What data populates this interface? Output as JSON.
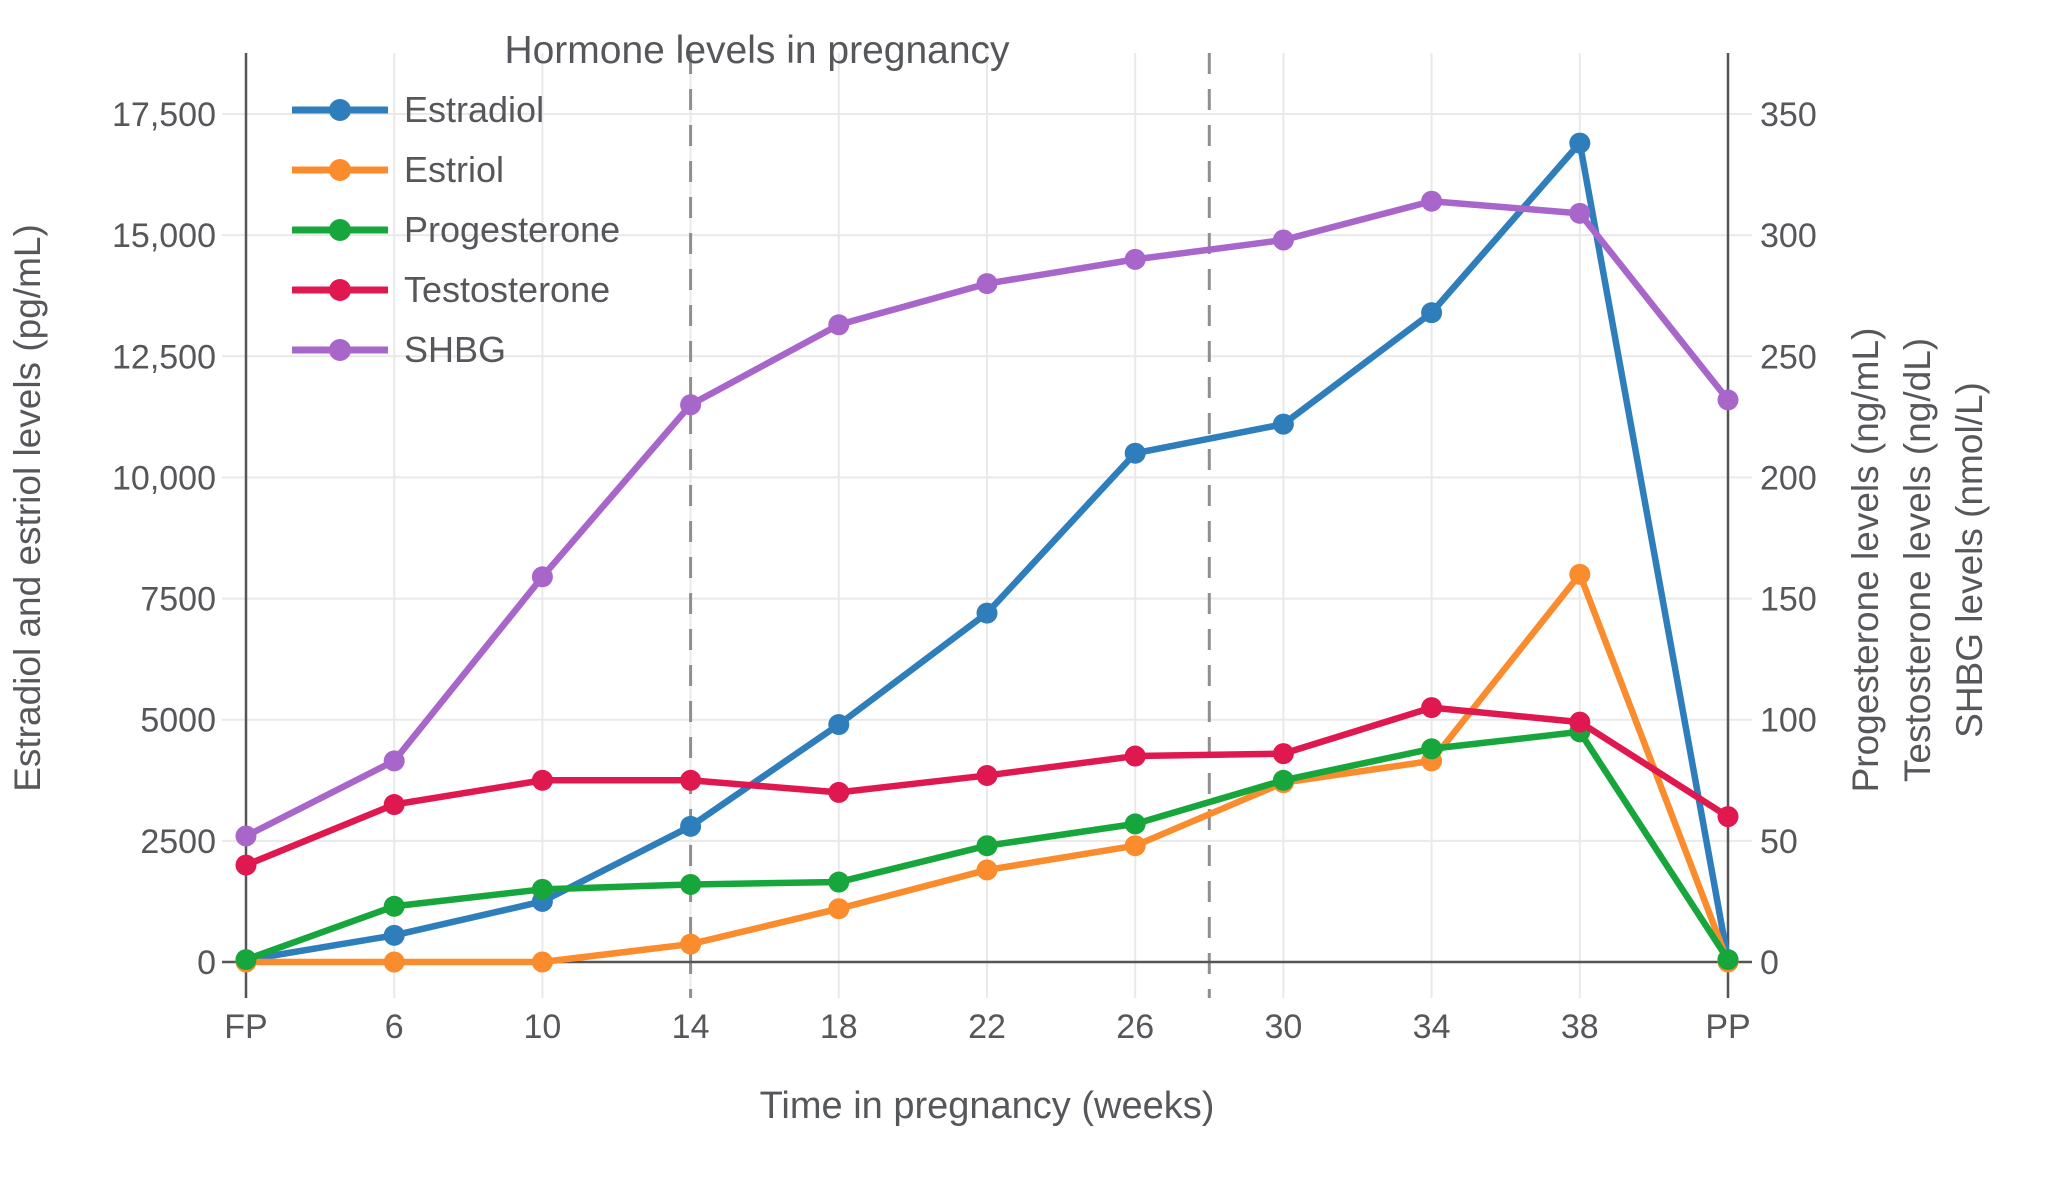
{
  "title": "Hormone levels in pregnancy",
  "colors": {
    "text": "#56575a",
    "grid": "#e9e9ea",
    "axis": "#545557",
    "dashed": "#8f8f8f",
    "background": "#ffffff"
  },
  "chart_data": {
    "type": "line",
    "title": "Hormone levels in pregnancy",
    "xlabel": "Time in pregnancy (weeks)",
    "x_categories": [
      "FP",
      "6",
      "10",
      "14",
      "18",
      "22",
      "26",
      "30",
      "34",
      "38",
      "PP"
    ],
    "dashed_vertical_lines_at_category_positions": [
      3,
      6.5
    ],
    "dashed_lines_meaning_weeks": [
      "14",
      "28"
    ],
    "grid": true,
    "legend_position": "top-left-inside",
    "left_axis": {
      "label": "Estradiol and estriol levels (pg/mL)",
      "range": [
        0,
        18750
      ],
      "ticks": [
        {
          "v": 0,
          "label": "0"
        },
        {
          "v": 2500,
          "label": "2500"
        },
        {
          "v": 5000,
          "label": "5000"
        },
        {
          "v": 7500,
          "label": "7500"
        },
        {
          "v": 10000,
          "label": "10,000"
        },
        {
          "v": 12500,
          "label": "12,500"
        },
        {
          "v": 15000,
          "label": "15,000"
        },
        {
          "v": 17500,
          "label": "17,500"
        }
      ]
    },
    "right_axis": {
      "labels": [
        "Progesterone levels (ng/mL)",
        "Testosterone levels (ng/dL)",
        "SHBG levels (nmol/L)"
      ],
      "range": [
        0,
        375
      ],
      "ticks": [
        {
          "v": 0,
          "label": "0"
        },
        {
          "v": 50,
          "label": "50"
        },
        {
          "v": 100,
          "label": "100"
        },
        {
          "v": 150,
          "label": "150"
        },
        {
          "v": 200,
          "label": "200"
        },
        {
          "v": 250,
          "label": "250"
        },
        {
          "v": 300,
          "label": "300"
        },
        {
          "v": 350,
          "label": "350"
        }
      ]
    },
    "series": [
      {
        "name": "Estradiol",
        "axis": "left",
        "color": "#2e7ebc",
        "values": [
          40,
          550,
          1250,
          2800,
          4900,
          7200,
          10500,
          11100,
          13400,
          16900,
          40
        ]
      },
      {
        "name": "Estriol",
        "axis": "left",
        "color": "#fa8c2e",
        "values": [
          0,
          0,
          0,
          370,
          1100,
          1900,
          2400,
          3700,
          4150,
          8000,
          0
        ]
      },
      {
        "name": "Progesterone",
        "axis": "right",
        "color": "#17a63c",
        "values": [
          1,
          23,
          30,
          32,
          33,
          48,
          57,
          75,
          88,
          95,
          1
        ]
      },
      {
        "name": "Testosterone",
        "axis": "right",
        "color": "#df1950",
        "values": [
          40,
          65,
          75,
          75,
          70,
          77,
          85,
          86,
          105,
          99,
          60
        ]
      },
      {
        "name": "SHBG",
        "axis": "right",
        "color": "#a866cb",
        "values": [
          52,
          83,
          159,
          230,
          263,
          280,
          290,
          298,
          314,
          309,
          232
        ]
      }
    ]
  }
}
